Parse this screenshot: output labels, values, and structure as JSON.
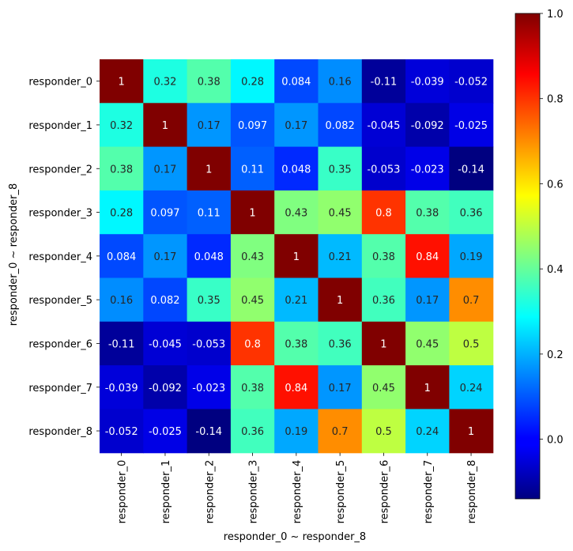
{
  "chart_data": {
    "type": "heatmap",
    "title": "",
    "xlabel": "responder_0  ~  responder_8",
    "ylabel": "responder_0  ~  responder_8",
    "row_labels": [
      "responder_0",
      "responder_1",
      "responder_2",
      "responder_3",
      "responder_4",
      "responder_5",
      "responder_6",
      "responder_7",
      "responder_8"
    ],
    "col_labels": [
      "responder_0",
      "responder_1",
      "responder_2",
      "responder_3",
      "responder_4",
      "responder_5",
      "responder_6",
      "responder_7",
      "responder_8"
    ],
    "values": [
      [
        1,
        0.32,
        0.38,
        0.28,
        0.084,
        0.16,
        -0.11,
        -0.039,
        -0.052
      ],
      [
        0.32,
        1,
        0.17,
        0.097,
        0.17,
        0.082,
        -0.045,
        -0.092,
        -0.025
      ],
      [
        0.38,
        0.17,
        1,
        0.11,
        0.048,
        0.35,
        -0.053,
        -0.023,
        -0.14
      ],
      [
        0.28,
        0.097,
        0.11,
        1,
        0.43,
        0.45,
        0.8,
        0.38,
        0.36
      ],
      [
        0.084,
        0.17,
        0.048,
        0.43,
        1,
        0.21,
        0.38,
        0.84,
        0.19
      ],
      [
        0.16,
        0.082,
        0.35,
        0.45,
        0.21,
        1,
        0.36,
        0.17,
        0.7
      ],
      [
        -0.11,
        -0.045,
        -0.053,
        0.8,
        0.38,
        0.36,
        1,
        0.45,
        0.5
      ],
      [
        -0.039,
        -0.092,
        -0.023,
        0.38,
        0.84,
        0.17,
        0.45,
        1,
        0.24
      ],
      [
        -0.052,
        -0.025,
        -0.14,
        0.36,
        0.19,
        0.7,
        0.5,
        0.24,
        1
      ]
    ],
    "cell_text": [
      [
        "1",
        "0.32",
        "0.38",
        "0.28",
        "0.084",
        "0.16",
        "-0.11",
        "-0.039",
        "-0.052"
      ],
      [
        "0.32",
        "1",
        "0.17",
        "0.097",
        "0.17",
        "0.082",
        "-0.045",
        "-0.092",
        "-0.025"
      ],
      [
        "0.38",
        "0.17",
        "1",
        "0.11",
        "0.048",
        "0.35",
        "-0.053",
        "-0.023",
        "-0.14"
      ],
      [
        "0.28",
        "0.097",
        "0.11",
        "1",
        "0.43",
        "0.45",
        "0.8",
        "0.38",
        "0.36"
      ],
      [
        "0.084",
        "0.17",
        "0.048",
        "0.43",
        "1",
        "0.21",
        "0.38",
        "0.84",
        "0.19"
      ],
      [
        "0.16",
        "0.082",
        "0.35",
        "0.45",
        "0.21",
        "1",
        "0.36",
        "0.17",
        "0.7"
      ],
      [
        "-0.11",
        "-0.045",
        "-0.053",
        "0.8",
        "0.38",
        "0.36",
        "1",
        "0.45",
        "0.5"
      ],
      [
        "-0.039",
        "-0.092",
        "-0.023",
        "0.38",
        "0.84",
        "0.17",
        "0.45",
        "1",
        "0.24"
      ],
      [
        "-0.052",
        "-0.025",
        "-0.14",
        "0.36",
        "0.19",
        "0.7",
        "0.5",
        "0.24",
        "1"
      ]
    ],
    "colormap": "jet",
    "vmin": -0.14,
    "vmax": 1,
    "colorbar_ticks": [
      0.0,
      0.2,
      0.4,
      0.6,
      0.8,
      1.0
    ],
    "colorbar_tick_labels": [
      "0.0",
      "0.2",
      "0.4",
      "0.6",
      "0.8",
      "1.0"
    ],
    "colorbar_placement": "right"
  }
}
